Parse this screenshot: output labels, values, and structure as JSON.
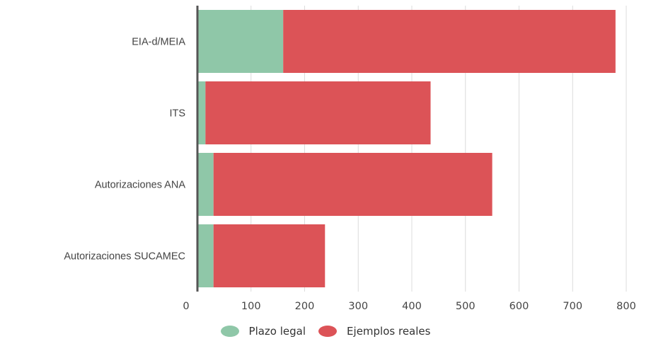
{
  "header": {
    "text": ""
  },
  "chart_data": {
    "type": "bar",
    "orientation": "horizontal",
    "stacked": true,
    "categories": [
      "EIA-d/MEIA",
      "ITS",
      "Autorizaciones ANA",
      "Autorizaciones SUCAMEC"
    ],
    "series": [
      {
        "name": "Plazo legal",
        "values": [
          160,
          15,
          30,
          30
        ],
        "color": "#8fc7a8"
      },
      {
        "name": "Ejemplos reales",
        "values": [
          620,
          420,
          520,
          208
        ],
        "color": "#dc5357"
      }
    ],
    "x_ticks": [
      "0",
      "100",
      "200",
      "300",
      "400",
      "500",
      "600",
      "700",
      "800"
    ],
    "xlim": [
      0,
      800
    ],
    "grid": true,
    "legend_position": "bottom"
  }
}
